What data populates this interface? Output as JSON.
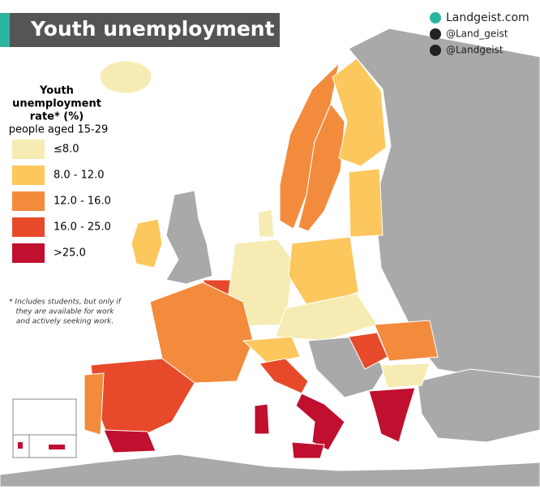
{
  "header": {
    "title": "Youth unemployment"
  },
  "brand": [
    "Landgeist.com",
    "@Land_geist",
    "@Landgeist"
  ],
  "legend": {
    "title_lines": [
      "Youth",
      "unemployment",
      "rate* (%)"
    ],
    "subtitle": "people aged 15-29",
    "items": [
      {
        "label": "≤8.0",
        "color": "#f6ecb3"
      },
      {
        "label": "8.0  - 12.0",
        "color": "#fcc75c"
      },
      {
        "label": "12.0 - 16.0",
        "color": "#f38b3d"
      },
      {
        "label": "16.0 - 25.0",
        "color": "#e64a2a"
      },
      {
        "label": ">25.0",
        "color": "#c00f2f"
      }
    ]
  },
  "footnote": [
    "* Includes students, but only if",
    "they are available for work",
    "and actively seeking work."
  ]
}
